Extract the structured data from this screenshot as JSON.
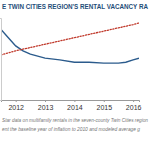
{
  "chart_data": {
    "type": "line",
    "title": "E TWIN CITIES REGION'S RENTAL VACANCY RA",
    "annotations": [
      "Star data on multifamily rentals in the seven-county Twin Cities region",
      "ent the baseline year of inflation to 2010 and modeled average g"
    ],
    "x": [
      2011.5,
      2011.75,
      2012,
      2012.25,
      2012.5,
      2013,
      2013.5,
      2014,
      2014.5,
      2015,
      2015.5,
      2015.75,
      2016,
      2016.2
    ],
    "series": [
      {
        "color": "#2b5b8c",
        "line_style": "solid",
        "values": [
          8.6,
          7.6,
          6.6,
          6.0,
          5.6,
          5.1,
          4.9,
          4.6,
          4.6,
          4.5,
          4.5,
          4.6,
          4.9,
          5.1
        ]
      },
      {
        "color": "#c0392b",
        "line_style": "dotted",
        "values": [
          5.5,
          5.75,
          6.0,
          6.2,
          6.4,
          6.8,
          7.2,
          7.6,
          8.0,
          8.4,
          8.8,
          9.0,
          9.2,
          9.4
        ]
      }
    ],
    "xlim": [
      2011.5,
      2016.2
    ],
    "xticks": [
      2012,
      2013,
      2014,
      2015,
      2016
    ],
    "ylim": [
      0,
      10
    ],
    "grid": false,
    "tick_labels": "x"
  }
}
